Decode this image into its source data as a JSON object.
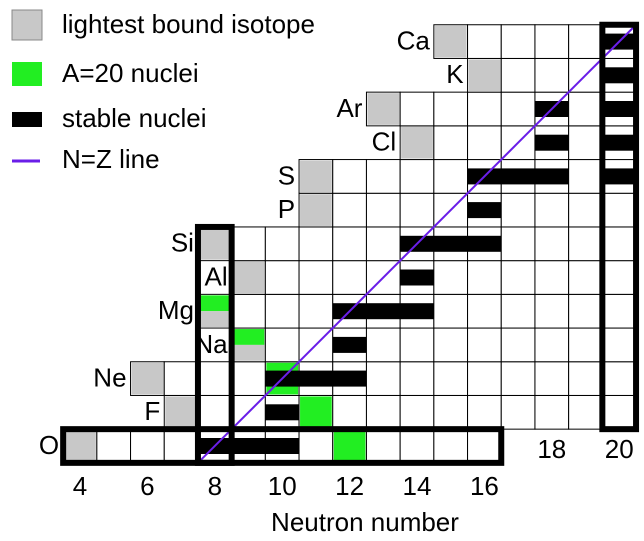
{
  "legend": [
    {
      "label": "lightest bound isotope"
    },
    {
      "label": "A=20 nuclei"
    },
    {
      "label": "stable nuclei"
    },
    {
      "label": "N=Z line"
    }
  ],
  "elements": [
    "O",
    "F",
    "Ne",
    "Na",
    "Mg",
    "Al",
    "Si",
    "P",
    "S",
    "Cl",
    "Ar",
    "K",
    "Ca"
  ],
  "x_axis": {
    "label": "Neutron number",
    "ticks": [
      4,
      6,
      8,
      10,
      12,
      14,
      16,
      18,
      20
    ]
  }
}
